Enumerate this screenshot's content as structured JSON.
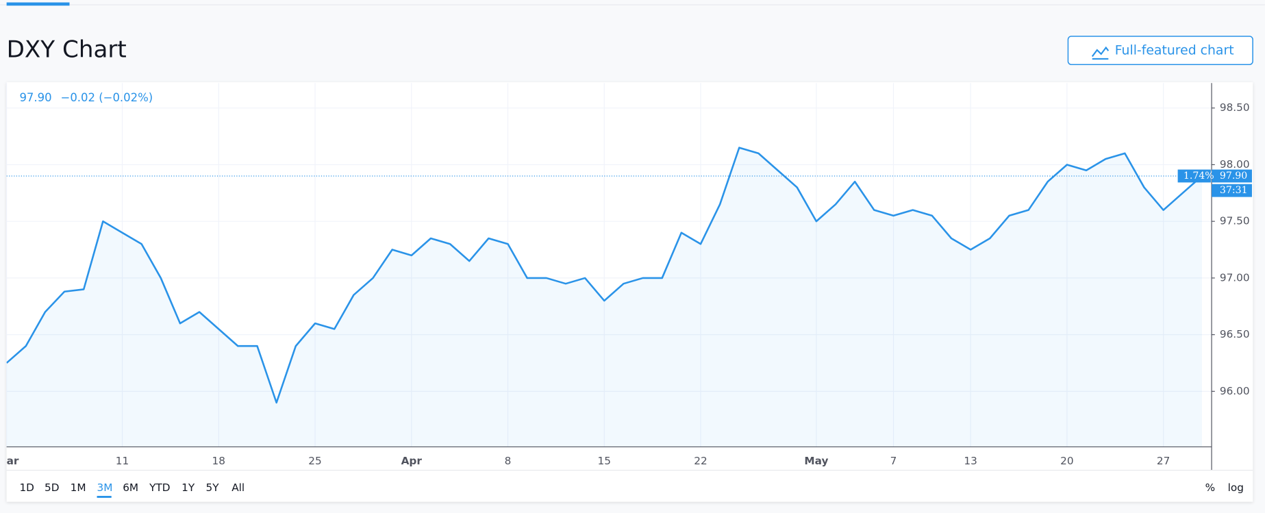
{
  "header": {
    "title": "DXY Chart",
    "button": "Full-featured chart"
  },
  "chart_data": {
    "type": "line",
    "categories": [
      "ar",
      null,
      null,
      null,
      null,
      null,
      "11",
      null,
      null,
      null,
      null,
      "18",
      null,
      null,
      null,
      null,
      "25",
      null,
      null,
      null,
      null,
      "Apr",
      null,
      null,
      null,
      null,
      "8",
      null,
      null,
      null,
      null,
      "15",
      null,
      null,
      null,
      null,
      "22",
      null,
      null,
      null,
      null,
      null,
      "May",
      null,
      null,
      null,
      "7",
      null,
      null,
      null,
      "13",
      null,
      null,
      null,
      null,
      "20",
      null,
      null,
      null,
      null,
      "27",
      null,
      null
    ],
    "series": [
      {
        "name": "DXY",
        "color": "#2a93e8",
        "values": [
          96.25,
          96.4,
          96.7,
          96.88,
          96.9,
          97.5,
          97.4,
          97.3,
          97.0,
          96.6,
          96.7,
          96.55,
          96.4,
          96.4,
          95.9,
          96.4,
          96.6,
          96.55,
          96.85,
          97.0,
          97.25,
          97.2,
          97.35,
          97.3,
          97.15,
          97.35,
          97.3,
          97.0,
          97.0,
          96.95,
          97.0,
          96.8,
          96.95,
          97.0,
          97.0,
          97.4,
          97.3,
          97.65,
          98.15,
          98.1,
          97.95,
          97.8,
          97.5,
          97.65,
          97.85,
          97.6,
          97.55,
          97.6,
          97.55,
          97.35,
          97.25,
          97.35,
          97.55,
          97.6,
          97.85,
          98.0,
          97.95,
          98.05,
          98.1,
          97.8,
          97.6,
          97.75,
          97.9
        ]
      }
    ],
    "ylim": [
      95.51,
      98.72
    ],
    "yticks": [
      {
        "value": 96,
        "label": "96.00"
      },
      {
        "value": 96.5,
        "label": "96.50"
      },
      {
        "value": 97,
        "label": "97.00"
      },
      {
        "value": 97.5,
        "label": "97.50"
      },
      {
        "value": 98,
        "label": "98.00"
      },
      {
        "value": 98.5,
        "label": "98.50"
      }
    ],
    "grid": true,
    "last": {
      "value": 97.9,
      "label": "97.90"
    },
    "change": "−0.02 (−0.02%)",
    "percent_badge": "1.74%",
    "countdown": "37:31"
  },
  "toolbar": {
    "ranges": [
      "1D",
      "5D",
      "1M",
      "3M",
      "6M",
      "YTD",
      "1Y",
      "5Y",
      "All"
    ],
    "selected": 3,
    "right": [
      "%",
      "log"
    ]
  }
}
